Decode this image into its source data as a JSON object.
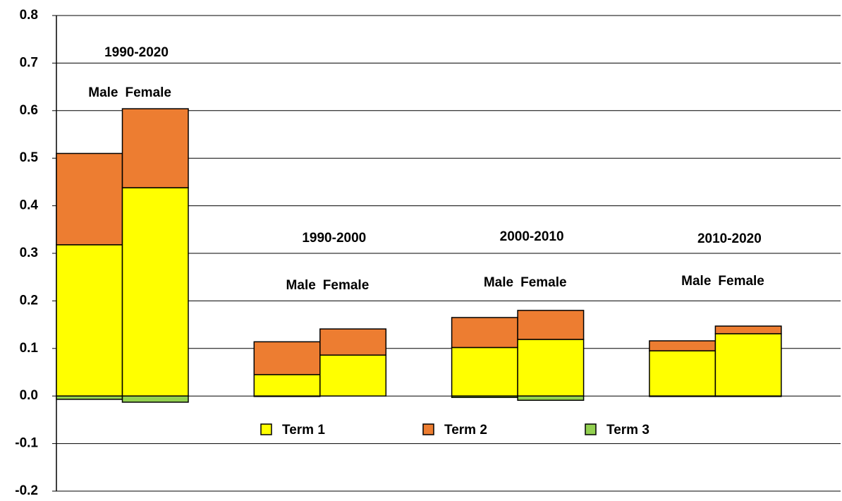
{
  "chart_data": {
    "type": "stacked-bar",
    "groups": [
      "1990-2020",
      "1990-2000",
      "2000-2010",
      "2010-2020"
    ],
    "categories": [
      "Male",
      "Female",
      "Male",
      "Female",
      "Male",
      "Female",
      "Male",
      "Female"
    ],
    "series": [
      {
        "name": "Term 1",
        "color": "#ffff00",
        "values": [
          0.318,
          0.438,
          0.045,
          0.086,
          0.102,
          0.119,
          0.095,
          0.131
        ]
      },
      {
        "name": "Term 2",
        "color": "#ed7d31",
        "values": [
          0.192,
          0.166,
          0.069,
          0.055,
          0.063,
          0.061,
          0.021,
          0.016
        ]
      },
      {
        "name": "Term 3",
        "color": "#92d050",
        "values": [
          -0.007,
          -0.013,
          -0.001,
          0,
          -0.003,
          -0.009,
          -0.001,
          -0.001
        ]
      }
    ],
    "ylim": [
      -0.2,
      0.8
    ],
    "yticks": [
      -0.2,
      -0.1,
      {
        "value": 0,
        "label": "0.0"
      },
      0.1,
      0.2,
      0.3,
      0.4,
      0.5,
      0.6,
      0.7,
      0.8
    ],
    "grid": true
  }
}
